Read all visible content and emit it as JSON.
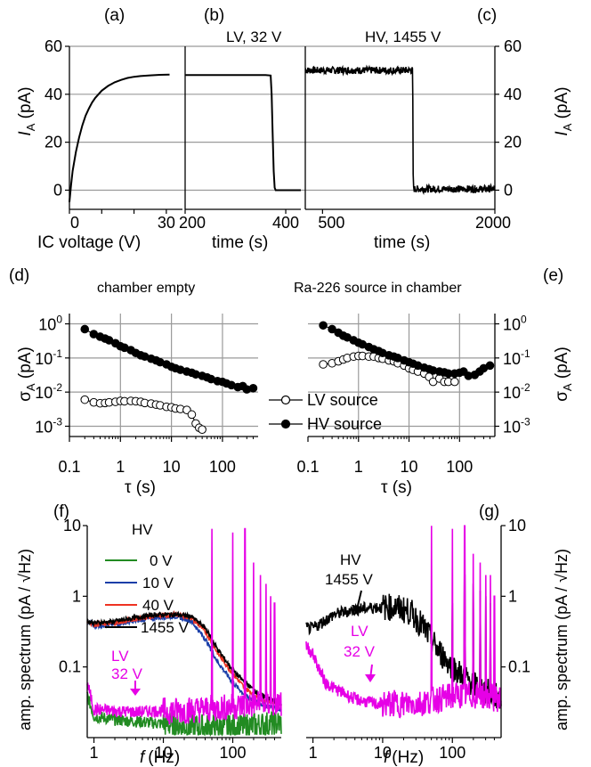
{
  "chart_data": [
    {
      "panel": "(a)",
      "type": "line",
      "xlabel": "IC voltage (V)",
      "ylabel": "I_A (pA)",
      "xlim": [
        0,
        35
      ],
      "ylim": [
        -8,
        60
      ],
      "xticks": [
        0,
        10,
        20,
        30
      ],
      "yticks": [
        0,
        20,
        40,
        60
      ],
      "grid": "horizontal",
      "series": [
        {
          "color": "#000000",
          "x": [
            0,
            0.5,
            1,
            2,
            3,
            4,
            5,
            6,
            7,
            8,
            10,
            12,
            14,
            16,
            18,
            20,
            22,
            25,
            28,
            31
          ],
          "y": [
            -5,
            2,
            8,
            16,
            22,
            27,
            31,
            34,
            36.5,
            38.5,
            41.5,
            43.5,
            45,
            46,
            46.8,
            47.3,
            47.6,
            47.9,
            48.1,
            48.2
          ]
        }
      ]
    },
    {
      "panel": "(b)",
      "type": "line",
      "annotation": "LV, 32 V",
      "xlabel": "time (s)",
      "xlim": [
        200,
        430
      ],
      "ylim": [
        -8,
        60
      ],
      "xticks": [
        200,
        400
      ],
      "grid": "horizontal",
      "series": [
        {
          "color": "#000000",
          "x": [
            200,
            280,
            360,
            370,
            372,
            374,
            376,
            378,
            380,
            430
          ],
          "y": [
            48,
            48,
            48,
            47.8,
            40,
            24,
            8,
            1,
            0,
            0
          ]
        }
      ]
    },
    {
      "panel": "(c)",
      "type": "line",
      "annotation": "HV, 1455 V",
      "xlabel": "time (s)",
      "ylabel": "I_A (pA)",
      "xlim": [
        350,
        2000
      ],
      "ylim": [
        -8,
        60
      ],
      "xticks": [
        500,
        2000
      ],
      "yticks": [
        0,
        20,
        40,
        60
      ],
      "grid": "horizontal",
      "series": [
        {
          "color": "#000000",
          "noise": 1.5,
          "x": [
            350,
            1285,
            1287,
            1290,
            2000
          ],
          "y": [
            50,
            50,
            25,
            0.5,
            0.5
          ]
        }
      ]
    },
    {
      "panel": "(d)",
      "type": "scatter",
      "title": "chamber empty",
      "xlabel": "τ (s)",
      "ylabel": "σ_A (pA)",
      "scale": "log-log",
      "xlim": [
        0.1,
        500
      ],
      "ylim": [
        0.0005,
        2
      ],
      "xticks": [
        "0.1",
        "1",
        "10",
        "100"
      ],
      "yticks": [
        "10^-3",
        "10^-2",
        "10^-1",
        "10^0"
      ],
      "grid": "both",
      "series": [
        {
          "name": "LV source",
          "marker": "open",
          "x": [
            0.2,
            0.3,
            0.4,
            0.5,
            0.6,
            0.8,
            1,
            1.2,
            1.6,
            2,
            2.5,
            3,
            4,
            5,
            6,
            8,
            10,
            12,
            15,
            20,
            25,
            30,
            35,
            40
          ],
          "y": [
            0.006,
            0.005,
            0.0047,
            0.0048,
            0.005,
            0.0052,
            0.0055,
            0.0054,
            0.0055,
            0.0054,
            0.0052,
            0.0048,
            0.0046,
            0.0043,
            0.0041,
            0.0037,
            0.0036,
            0.0033,
            0.0032,
            0.003,
            0.0022,
            0.0012,
            0.0009,
            0.0008
          ]
        },
        {
          "name": "HV source",
          "marker": "filled",
          "x": [
            0.2,
            0.3,
            0.4,
            0.5,
            0.6,
            0.8,
            1,
            1.2,
            1.6,
            2,
            2.5,
            3,
            4,
            5,
            6,
            8,
            10,
            12,
            15,
            20,
            25,
            30,
            40,
            50,
            60,
            80,
            100,
            120,
            150,
            200,
            250,
            300,
            400
          ],
          "y": [
            0.7,
            0.5,
            0.42,
            0.37,
            0.33,
            0.27,
            0.22,
            0.2,
            0.17,
            0.14,
            0.12,
            0.11,
            0.095,
            0.085,
            0.075,
            0.065,
            0.055,
            0.05,
            0.045,
            0.04,
            0.037,
            0.033,
            0.03,
            0.027,
            0.024,
            0.021,
            0.02,
            0.018,
            0.016,
            0.014,
            0.015,
            0.012,
            0.013
          ]
        }
      ]
    },
    {
      "panel": "(e)",
      "type": "scatter",
      "title": "Ra-226 source in chamber",
      "xlabel": "τ (s)",
      "ylabel": "σ_A (pA)",
      "scale": "log-log",
      "xlim": [
        0.1,
        500
      ],
      "ylim": [
        0.0005,
        2
      ],
      "xticks": [
        "0.1",
        "1",
        "10",
        "100"
      ],
      "yticks": [
        "10^-3",
        "10^-2",
        "10^-1",
        "10^0"
      ],
      "grid": "both",
      "series": [
        {
          "name": "LV source",
          "marker": "open",
          "x": [
            0.2,
            0.3,
            0.4,
            0.5,
            0.6,
            0.8,
            1,
            1.2,
            1.6,
            2,
            2.5,
            3,
            4,
            5,
            6,
            8,
            10,
            12,
            15,
            20,
            25,
            30,
            40,
            50,
            60,
            80
          ],
          "y": [
            0.065,
            0.07,
            0.08,
            0.09,
            0.1,
            0.11,
            0.115,
            0.115,
            0.11,
            0.11,
            0.1,
            0.095,
            0.085,
            0.08,
            0.07,
            0.06,
            0.05,
            0.045,
            0.04,
            0.035,
            0.028,
            0.02,
            0.025,
            0.02,
            0.02,
            0.02
          ]
        },
        {
          "name": "HV source",
          "marker": "filled",
          "x": [
            0.2,
            0.3,
            0.4,
            0.5,
            0.6,
            0.8,
            1,
            1.2,
            1.6,
            2,
            2.5,
            3,
            4,
            5,
            6,
            8,
            10,
            12,
            15,
            20,
            25,
            30,
            40,
            50,
            60,
            80,
            100,
            120,
            150,
            200,
            250,
            300,
            400
          ],
          "y": [
            0.9,
            0.7,
            0.55,
            0.45,
            0.4,
            0.33,
            0.28,
            0.25,
            0.21,
            0.18,
            0.16,
            0.14,
            0.12,
            0.11,
            0.1,
            0.085,
            0.075,
            0.068,
            0.06,
            0.052,
            0.047,
            0.043,
            0.04,
            0.038,
            0.035,
            0.035,
            0.037,
            0.04,
            0.03,
            0.032,
            0.04,
            0.05,
            0.06
          ]
        }
      ]
    },
    {
      "panel": "(f)",
      "type": "line",
      "xlabel": "f (Hz)",
      "ylabel": "amp. spectrum (pA / √Hz)",
      "scale": "log-log",
      "xlim": [
        0.8,
        500
      ],
      "ylim": [
        0.01,
        10
      ],
      "xticks": [
        "1",
        "10",
        "100"
      ],
      "yticks": [
        "0.1",
        "1",
        "10"
      ],
      "legend_title": "HV",
      "annotation": "LV 32 V",
      "series": [
        {
          "name": "0 V",
          "color": "#228b22",
          "noisy": true,
          "x": [
            0.8,
            1,
            2,
            4,
            8,
            15,
            30,
            60,
            120,
            250,
            500
          ],
          "y": [
            0.04,
            0.02,
            0.018,
            0.017,
            0.016,
            0.015,
            0.014,
            0.014,
            0.014,
            0.015,
            0.016
          ]
        },
        {
          "name": "10 V",
          "color": "#1a3ea8",
          "noisy": false,
          "x": [
            0.8,
            1,
            2,
            4,
            8,
            15,
            25,
            40,
            60,
            100,
            150,
            250,
            500
          ],
          "y": [
            0.45,
            0.38,
            0.4,
            0.45,
            0.5,
            0.52,
            0.45,
            0.25,
            0.12,
            0.06,
            0.04,
            0.03,
            0.025
          ]
        },
        {
          "name": "40 V",
          "color": "#ee3322",
          "noisy": false,
          "x": [
            0.8,
            1,
            2,
            4,
            8,
            15,
            25,
            40,
            60,
            100,
            150,
            250,
            500
          ],
          "y": [
            0.45,
            0.4,
            0.42,
            0.48,
            0.53,
            0.55,
            0.5,
            0.32,
            0.16,
            0.08,
            0.05,
            0.035,
            0.03
          ]
        },
        {
          "name": "1455 V",
          "color": "#000000",
          "noisy": false,
          "x": [
            0.8,
            1,
            2,
            4,
            8,
            15,
            25,
            40,
            60,
            100,
            150,
            250,
            500
          ],
          "y": [
            0.45,
            0.42,
            0.44,
            0.5,
            0.55,
            0.55,
            0.52,
            0.36,
            0.18,
            0.09,
            0.06,
            0.04,
            0.03
          ]
        },
        {
          "name": "LV 32 V",
          "color": "#e600e6",
          "noisy": true,
          "x": [
            0.8,
            1,
            2,
            4,
            8,
            15,
            30,
            60,
            120,
            250,
            500
          ],
          "y": [
            0.06,
            0.025,
            0.024,
            0.023,
            0.024,
            0.024,
            0.025,
            0.026,
            0.028,
            0.03,
            0.03
          ],
          "peaks": [
            [
              50,
              9
            ],
            [
              100,
              8
            ],
            [
              150,
              9
            ],
            [
              200,
              3
            ],
            [
              250,
              2
            ],
            [
              300,
              1.5
            ],
            [
              350,
              1
            ],
            [
              400,
              0.8
            ]
          ]
        }
      ]
    },
    {
      "panel": "(g)",
      "type": "line",
      "xlabel": "f (Hz)",
      "ylabel": "amp. spectrum (pA / √Hz)",
      "scale": "log-log",
      "xlim": [
        0.8,
        500
      ],
      "ylim": [
        0.01,
        10
      ],
      "xticks": [
        "1",
        "10",
        "100"
      ],
      "yticks": [
        "0.1",
        "1",
        "10"
      ],
      "annotations": [
        "HV 1455 V",
        "LV 32 V"
      ],
      "series": [
        {
          "name": "HV 1455 V",
          "color": "#000000",
          "noisy": true,
          "x": [
            0.8,
            1,
            2,
            4,
            8,
            15,
            25,
            40,
            60,
            100,
            150,
            250,
            500
          ],
          "y": [
            0.35,
            0.35,
            0.55,
            0.65,
            0.7,
            0.7,
            0.6,
            0.35,
            0.18,
            0.1,
            0.07,
            0.05,
            0.035
          ],
          "peaks": [
            [
              100,
              0.8
            ],
            [
              150,
              2
            ],
            [
              200,
              1.5
            ],
            [
              250,
              1.2
            ],
            [
              300,
              1
            ],
            [
              350,
              0.8
            ]
          ]
        },
        {
          "name": "LV 32 V",
          "color": "#e600e6",
          "noisy": true,
          "x": [
            0.8,
            1,
            1.5,
            2,
            4,
            8,
            15,
            30,
            60,
            120,
            250,
            500
          ],
          "y": [
            0.2,
            0.15,
            0.06,
            0.05,
            0.035,
            0.03,
            0.03,
            0.03,
            0.035,
            0.04,
            0.04,
            0.035
          ],
          "peaks": [
            [
              50,
              10
            ],
            [
              100,
              9
            ],
            [
              150,
              10
            ],
            [
              200,
              4
            ],
            [
              250,
              3
            ],
            [
              300,
              2
            ],
            [
              350,
              2
            ],
            [
              400,
              1
            ]
          ]
        }
      ]
    }
  ],
  "labels": {
    "a": "(a)",
    "b": "(b)",
    "c": "(c)",
    "d": "(d)",
    "e": "(e)",
    "f": "(f)",
    "g": "(g)",
    "lv32": "LV, 32 V",
    "hv1455": "HV, 1455 V",
    "chamber_empty": "chamber empty",
    "ra226": "Ra-226 source in chamber",
    "legend_lv": "LV source",
    "legend_hv": "HV source",
    "f_legend_title": "HV",
    "f_lv": "LV",
    "f_32v": "32 V",
    "g_hv": "HV",
    "g_1455v": "1455 V",
    "g_lv": "LV",
    "g_32v": "32 V",
    "ic_voltage": "IC voltage (V)",
    "time_b": "time (s)",
    "time_c": "time (s)",
    "tau": "τ (s)",
    "tau2": "τ (s)",
    "f_hz_left": "(Hz)",
    "f_hz_right": "(Hz)",
    "f_italic": "f",
    "amp_left": "amp. spectrum (pA / √Hz)",
    "amp_right": "amp. spectrum (pA / √Hz)",
    "ia_left": "I",
    "ia_sub": "A",
    "ia_unit": " (pA)",
    "sigma": "σ",
    "sigma_sub": "A",
    "sigma_unit": " (pA)",
    "legend_f": [
      "0 V",
      "10 V",
      "40 V",
      "1455 V"
    ]
  }
}
